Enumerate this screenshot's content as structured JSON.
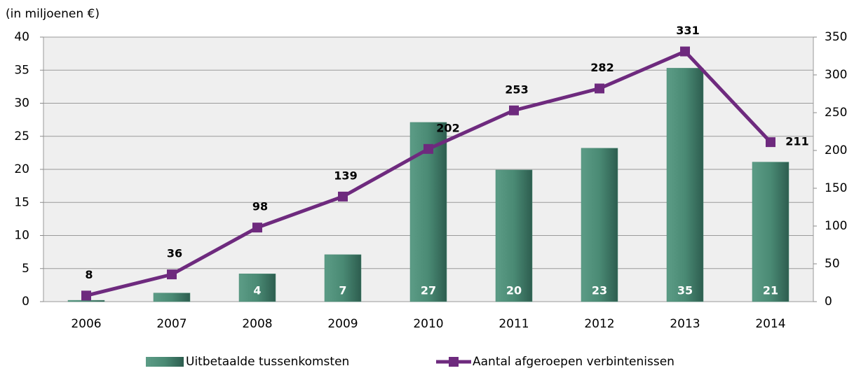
{
  "chart_data": {
    "type": "bar",
    "ylabel": "(in miljoenen €)",
    "categories": [
      "2006",
      "2007",
      "2008",
      "2009",
      "2010",
      "2011",
      "2012",
      "2013",
      "2014"
    ],
    "series": [
      {
        "name": "Uitbetaalde tussenkomsten",
        "type": "bar",
        "color": "#4a8a74",
        "values": [
          0.2,
          1.3,
          4.2,
          7.1,
          27.1,
          19.9,
          23.2,
          35.3,
          21.1
        ],
        "value_labels": [
          null,
          null,
          "4",
          "7",
          "27",
          "20",
          "23",
          "35",
          "21"
        ]
      },
      {
        "name": "Aantal afgeroepen verbintenissen",
        "type": "line",
        "color": "#6e2a7e",
        "axis": "y2",
        "values": [
          8,
          36,
          98,
          139,
          202,
          253,
          282,
          331,
          211
        ]
      }
    ],
    "ylim": [
      0,
      40
    ],
    "yticks": [
      0,
      5,
      10,
      15,
      20,
      25,
      30,
      35,
      40
    ],
    "y2lim": [
      0,
      350
    ],
    "y2ticks": [
      0,
      50,
      100,
      150,
      200,
      250,
      300,
      350
    ],
    "grid": true,
    "legend": "bottom"
  }
}
